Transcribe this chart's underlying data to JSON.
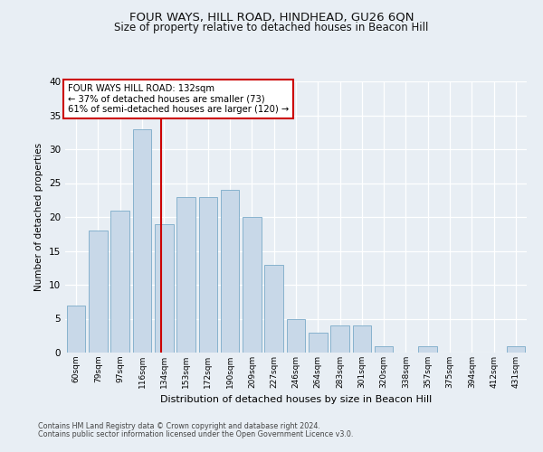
{
  "title": "FOUR WAYS, HILL ROAD, HINDHEAD, GU26 6QN",
  "subtitle": "Size of property relative to detached houses in Beacon Hill",
  "xlabel": "Distribution of detached houses by size in Beacon Hill",
  "ylabel": "Number of detached properties",
  "bar_color": "#c8d8e8",
  "bar_edge_color": "#7aaac8",
  "categories": [
    "60sqm",
    "79sqm",
    "97sqm",
    "116sqm",
    "134sqm",
    "153sqm",
    "172sqm",
    "190sqm",
    "209sqm",
    "227sqm",
    "246sqm",
    "264sqm",
    "283sqm",
    "301sqm",
    "320sqm",
    "338sqm",
    "357sqm",
    "375sqm",
    "394sqm",
    "412sqm",
    "431sqm"
  ],
  "values": [
    7,
    18,
    21,
    33,
    19,
    23,
    23,
    24,
    20,
    13,
    5,
    3,
    4,
    4,
    1,
    0,
    1,
    0,
    0,
    0,
    1
  ],
  "vline_x": 3.85,
  "vline_color": "#cc0000",
  "annotation_title": "FOUR WAYS HILL ROAD: 132sqm",
  "annotation_line1": "← 37% of detached houses are smaller (73)",
  "annotation_line2": "61% of semi-detached houses are larger (120) →",
  "annotation_box_color": "#ffffff",
  "annotation_box_edge": "#cc0000",
  "footer1": "Contains HM Land Registry data © Crown copyright and database right 2024.",
  "footer2": "Contains public sector information licensed under the Open Government Licence v3.0.",
  "ylim": [
    0,
    40
  ],
  "yticks": [
    0,
    5,
    10,
    15,
    20,
    25,
    30,
    35,
    40
  ],
  "bg_color": "#e8eef4",
  "grid_color": "#ffffff"
}
